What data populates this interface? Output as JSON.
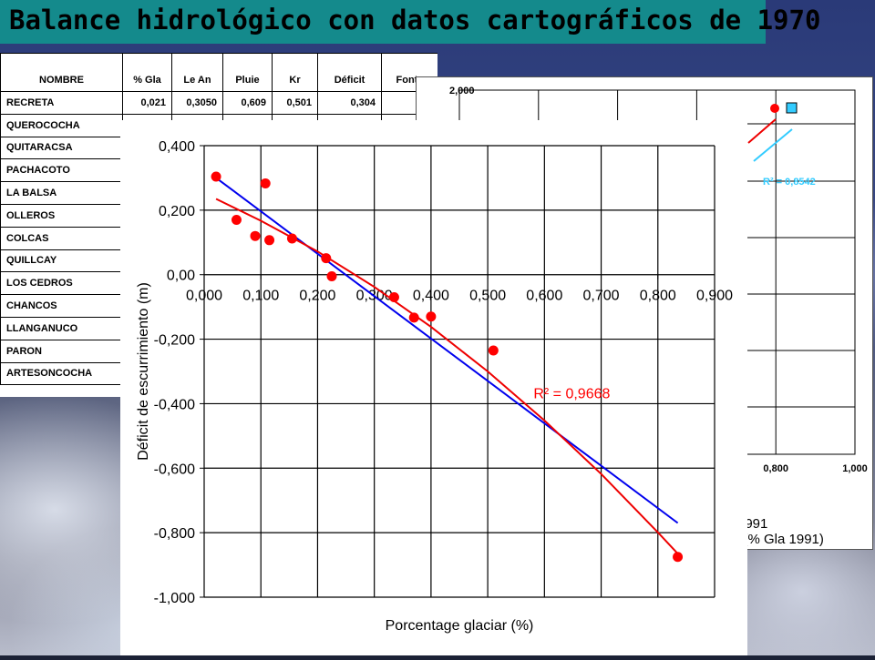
{
  "title": "Balance hidrológico con datos cartográficos de 1970",
  "table": {
    "headers": [
      "NOMBRE",
      "% Gla",
      "Le An",
      "Pluie",
      "Kr",
      "Déficit",
      "Fonte"
    ],
    "rows": [
      [
        "RECRETA",
        "0,021",
        "0,3050",
        "0,609",
        "0,501",
        "0,304",
        ""
      ],
      [
        "QUEROCOCHA",
        "",
        "",
        "",
        "",
        "",
        ""
      ],
      [
        "QUITARACSA",
        "",
        "",
        "",
        "",
        "",
        ""
      ],
      [
        "PACHACOTO",
        "",
        "",
        "",
        "",
        "",
        ""
      ],
      [
        "LA BALSA",
        "",
        "",
        "",
        "",
        "",
        ""
      ],
      [
        "OLLEROS",
        "",
        "",
        "",
        "",
        "",
        ""
      ],
      [
        "COLCAS",
        "",
        "",
        "",
        "",
        "",
        ""
      ],
      [
        "QUILLCAY",
        "",
        "",
        "",
        "",
        "",
        ""
      ],
      [
        "LOS CEDROS",
        "",
        "",
        "",
        "",
        "",
        ""
      ],
      [
        "CHANCOS",
        "",
        "",
        "",
        "",
        "",
        ""
      ],
      [
        "LLANGANUCO",
        "",
        "",
        "",
        "",
        "",
        ""
      ],
      [
        "PARON",
        "",
        "",
        "",
        "",
        "",
        ""
      ],
      [
        "ARTESONCOCHA",
        "",
        "",
        "",
        "",
        "",
        ""
      ]
    ]
  },
  "chart_data": [
    {
      "type": "scatter",
      "xlabel": "Porcentage glaciar (%)",
      "ylabel": "Déficit de escurrimiento (m)",
      "xlim": [
        0,
        0.9
      ],
      "ylim": [
        -1.0,
        0.4
      ],
      "x_ticks": [
        "0,000",
        "0,100",
        "0,200",
        "0,300",
        "0,400",
        "0,500",
        "0,600",
        "0,700",
        "0,800",
        "0,900"
      ],
      "y_ticks": [
        "0,400",
        "0,200",
        "0,00",
        "-0,200",
        "-0,400",
        "-0,600",
        "-0,800",
        "-1,000"
      ],
      "x_tick_values": [
        0,
        0.1,
        0.2,
        0.3,
        0.4,
        0.5,
        0.6,
        0.7,
        0.8,
        0.9
      ],
      "y_tick_values": [
        0.4,
        0.2,
        0.0,
        -0.2,
        -0.4,
        -0.6,
        -0.8,
        -1.0
      ],
      "grid": true,
      "points": {
        "x": [
          0.021,
          0.057,
          0.09,
          0.108,
          0.115,
          0.155,
          0.215,
          0.225,
          0.335,
          0.37,
          0.4,
          0.51,
          0.835
        ],
        "y": [
          0.304,
          0.17,
          0.12,
          0.283,
          0.107,
          0.112,
          0.051,
          -0.005,
          -0.07,
          -0.133,
          -0.13,
          -0.235,
          -0.875
        ],
        "color": "#ff0000"
      },
      "fits": [
        {
          "kind": "linear",
          "color": "#0000ee",
          "x": [
            0.021,
            0.835
          ],
          "y": [
            0.3,
            -0.77
          ]
        },
        {
          "kind": "polynomial",
          "color": "#ee0000",
          "x": [
            0.021,
            0.1,
            0.2,
            0.3,
            0.4,
            0.5,
            0.6,
            0.7,
            0.8,
            0.835
          ],
          "y": [
            0.235,
            0.167,
            0.072,
            -0.038,
            -0.162,
            -0.3,
            -0.452,
            -0.618,
            -0.799,
            -0.865
          ]
        }
      ],
      "annotation": {
        "text": "R² = 0,9668",
        "color": "#ff0000",
        "x": 0.6,
        "y": -0.31
      }
    },
    {
      "type": "scatter",
      "partial": true,
      "y_ticks_visible": [
        "2,000"
      ],
      "x_ticks_visible": [
        "0,800",
        "1,000"
      ],
      "x_tick_values": [
        0.8,
        1.0
      ],
      "points": {
        "x": [
          0.79
        ],
        "y": [
          1.93
        ],
        "color": "#ff0000"
      },
      "legend_marker_color": "#33ccff",
      "annotation": {
        "text": "R² = 0,8542",
        "color": "#33ccff"
      },
      "xlabel_partial": "e (% Gla 1991)",
      "legend_partial": "1991"
    }
  ]
}
